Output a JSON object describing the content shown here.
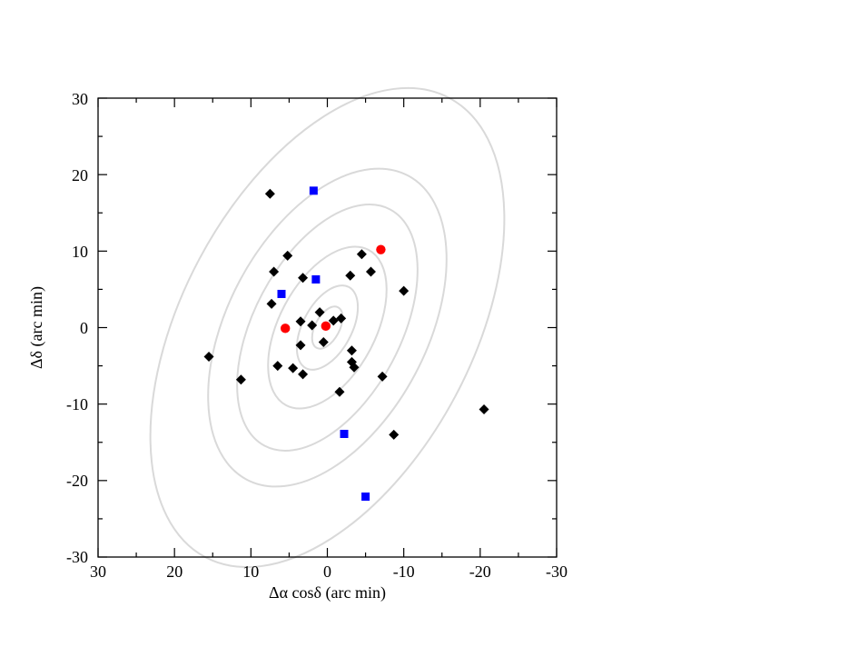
{
  "chart_data": {
    "type": "scatter",
    "title": "",
    "xlabel": "Δα cosδ (arc min)",
    "ylabel": "Δδ (arc min)",
    "xlim": [
      30,
      -30
    ],
    "ylim": [
      -30,
      30
    ],
    "x_reversed": true,
    "grid": false,
    "xticks": [
      "30",
      "20",
      "10",
      "0",
      "-10",
      "-20",
      "-30"
    ],
    "yticks": [
      "-30",
      "-20",
      "-10",
      "0",
      "10",
      "20",
      "30"
    ],
    "ellipse_contours": {
      "color": "#d9d9d9",
      "center": [
        0,
        0
      ],
      "tilt_deg": 28,
      "semi_axes": [
        [
          1.6,
          3.0
        ],
        [
          3.2,
          6.0
        ],
        [
          6.3,
          11.5
        ],
        [
          9.6,
          17.5
        ],
        [
          13.0,
          22.5
        ],
        [
          19.0,
          34.0
        ]
      ]
    },
    "series": [
      {
        "marker": "diamond",
        "color": "#000000",
        "points": [
          [
            7.5,
            17.5
          ],
          [
            5.2,
            9.4
          ],
          [
            7.0,
            7.3
          ],
          [
            3.2,
            6.5
          ],
          [
            -4.5,
            9.6
          ],
          [
            -3.0,
            6.8
          ],
          [
            -5.7,
            7.3
          ],
          [
            -10.0,
            4.8
          ],
          [
            7.3,
            3.1
          ],
          [
            3.5,
            0.8
          ],
          [
            1.0,
            2.0
          ],
          [
            2.0,
            0.3
          ],
          [
            -0.8,
            0.9
          ],
          [
            -1.8,
            1.2
          ],
          [
            0.5,
            -1.9
          ],
          [
            3.5,
            -2.3
          ],
          [
            -3.2,
            -3.0
          ],
          [
            -3.2,
            -4.5
          ],
          [
            -3.5,
            -5.2
          ],
          [
            6.5,
            -5.0
          ],
          [
            4.5,
            -5.3
          ],
          [
            3.2,
            -6.1
          ],
          [
            -7.2,
            -6.4
          ],
          [
            -1.6,
            -8.4
          ],
          [
            15.5,
            -3.8
          ],
          [
            11.3,
            -6.8
          ],
          [
            -8.7,
            -14.0
          ],
          [
            -20.5,
            -10.7
          ]
        ]
      },
      {
        "marker": "square",
        "color": "#0000ff",
        "points": [
          [
            1.8,
            17.9
          ],
          [
            1.5,
            6.3
          ],
          [
            6.0,
            4.4
          ],
          [
            -2.2,
            -13.9
          ],
          [
            -5.0,
            -22.1
          ]
        ]
      },
      {
        "marker": "circle",
        "color": "#ff0000",
        "points": [
          [
            -7.0,
            10.2
          ],
          [
            5.5,
            -0.1
          ],
          [
            0.2,
            0.2
          ]
        ]
      }
    ]
  }
}
